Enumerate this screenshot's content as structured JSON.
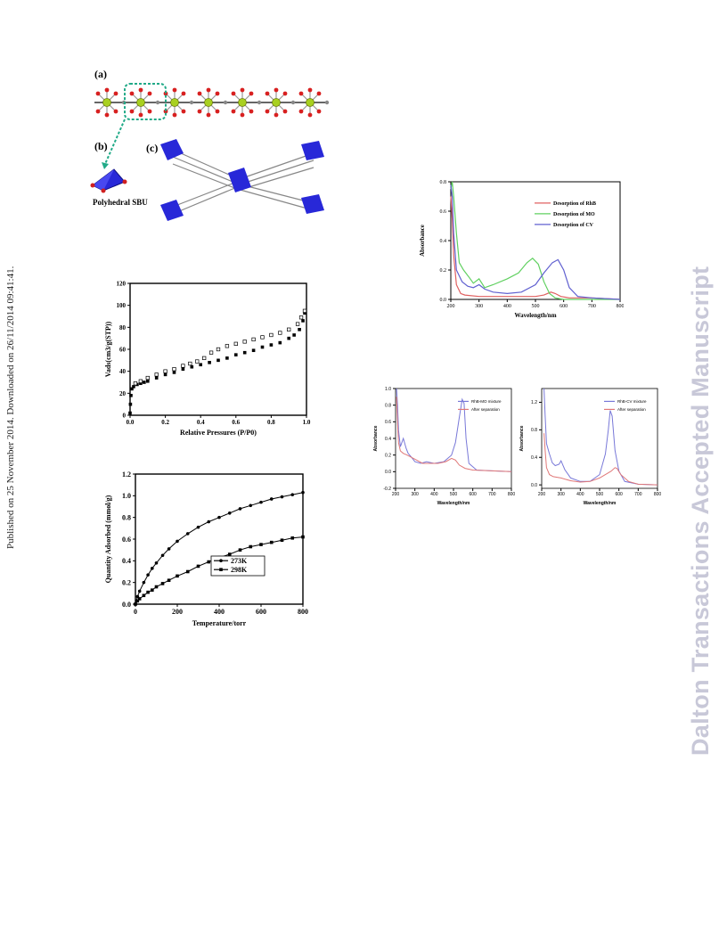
{
  "side_note": "Published on 25 November 2014. Downloaded on 26/11/2014 09:41:41.",
  "watermark": "Dalton Transactions Accepted Manuscript",
  "structure_figure": {
    "label_a": "(a)",
    "label_b": "(b)",
    "label_c": "(c)",
    "caption_b": "Polyhedral SBU"
  },
  "colors": {
    "rhb": "#e06060",
    "mo": "#60d060",
    "cv": "#6060d0",
    "mixture": "#7878d8",
    "after": "#e07878",
    "sbu": "#2828d8"
  },
  "chart_data": [
    {
      "id": "isotherm",
      "type": "scatter",
      "xlabel": "Relative Pressures (P/P0)",
      "ylabel": "Vads(cm3/g(STP))",
      "xlim": [
        0.0,
        1.0
      ],
      "ylim": [
        0,
        120
      ],
      "xticks": [
        "0.0",
        "0.2",
        "0.4",
        "0.6",
        "0.8",
        "1.0"
      ],
      "yticks": [
        "0",
        "20",
        "40",
        "60",
        "80",
        "100",
        "120"
      ],
      "series": [
        {
          "marker": "filled-square",
          "x": [
            0.0,
            0.002,
            0.005,
            0.01,
            0.02,
            0.04,
            0.06,
            0.08,
            0.1,
            0.15,
            0.2,
            0.25,
            0.3,
            0.35,
            0.4,
            0.45,
            0.5,
            0.55,
            0.6,
            0.65,
            0.7,
            0.75,
            0.8,
            0.85,
            0.9,
            0.93,
            0.96,
            0.98,
            0.99
          ],
          "y": [
            2,
            10,
            18,
            24,
            26,
            28,
            29,
            30,
            31,
            34,
            37,
            39,
            42,
            44,
            46,
            48,
            50,
            52,
            55,
            57,
            59,
            62,
            64,
            66,
            70,
            73,
            78,
            86,
            93
          ]
        },
        {
          "marker": "open-square",
          "x": [
            0.99,
            0.97,
            0.95,
            0.9,
            0.85,
            0.8,
            0.75,
            0.7,
            0.65,
            0.6,
            0.55,
            0.5,
            0.46,
            0.42,
            0.38,
            0.34,
            0.3,
            0.25,
            0.2,
            0.15,
            0.1,
            0.06,
            0.03
          ],
          "y": [
            95,
            89,
            83,
            78,
            75,
            73,
            71,
            69,
            67,
            65,
            63,
            60,
            57,
            52,
            49,
            47,
            45,
            42,
            40,
            37,
            34,
            31,
            29
          ]
        }
      ]
    },
    {
      "id": "co2",
      "type": "line",
      "xlabel": "Temperature/torr",
      "ylabel": "Quantity Adsorbed (mmol/g)",
      "xlim": [
        0,
        800
      ],
      "ylim": [
        0.0,
        1.2
      ],
      "xticks": [
        "0",
        "200",
        "400",
        "600",
        "800"
      ],
      "yticks": [
        "0.0",
        "0.2",
        "0.4",
        "0.6",
        "0.8",
        "1.0",
        "1.2"
      ],
      "legend_position": "center-right",
      "series": [
        {
          "name": "273K",
          "marker": "circle",
          "x": [
            0,
            10,
            20,
            40,
            60,
            80,
            100,
            130,
            160,
            200,
            250,
            300,
            350,
            400,
            450,
            500,
            550,
            600,
            650,
            700,
            750,
            800
          ],
          "y": [
            0.0,
            0.07,
            0.12,
            0.2,
            0.27,
            0.33,
            0.38,
            0.45,
            0.51,
            0.58,
            0.65,
            0.71,
            0.76,
            0.8,
            0.84,
            0.88,
            0.91,
            0.94,
            0.97,
            0.99,
            1.01,
            1.03
          ]
        },
        {
          "name": "298K",
          "marker": "square",
          "x": [
            0,
            10,
            20,
            40,
            60,
            80,
            100,
            130,
            160,
            200,
            250,
            300,
            350,
            400,
            450,
            500,
            550,
            600,
            650,
            700,
            750,
            800
          ],
          "y": [
            0.0,
            0.03,
            0.05,
            0.08,
            0.11,
            0.13,
            0.16,
            0.19,
            0.22,
            0.26,
            0.3,
            0.35,
            0.39,
            0.43,
            0.46,
            0.5,
            0.53,
            0.55,
            0.57,
            0.59,
            0.61,
            0.62
          ]
        }
      ]
    },
    {
      "id": "desorption",
      "type": "line",
      "xlabel": "Wavelength/nm",
      "ylabel": "Absorbance",
      "xlim": [
        200,
        800
      ],
      "ylim": [
        0.0,
        0.8
      ],
      "xticks": [
        "200",
        "300",
        "400",
        "500",
        "600",
        "700",
        "800"
      ],
      "yticks": [
        "0.0",
        "0.2",
        "0.4",
        "0.6",
        "0.8"
      ],
      "legend_position": "top-right",
      "series": [
        {
          "name": "Desorption of RhB",
          "x": [
            200,
            205,
            210,
            220,
            235,
            250,
            300,
            400,
            500,
            530,
            555,
            570,
            590,
            620,
            700,
            800
          ],
          "y": [
            0.7,
            0.55,
            0.3,
            0.1,
            0.04,
            0.03,
            0.02,
            0.02,
            0.02,
            0.03,
            0.05,
            0.04,
            0.02,
            0.01,
            0.01,
            0.0
          ]
        },
        {
          "name": "Desorption of MO",
          "x": [
            200,
            205,
            210,
            220,
            230,
            245,
            265,
            280,
            300,
            320,
            350,
            400,
            440,
            470,
            490,
            510,
            530,
            550,
            570,
            600,
            700,
            800
          ],
          "y": [
            0.75,
            0.8,
            0.7,
            0.45,
            0.25,
            0.2,
            0.15,
            0.11,
            0.14,
            0.08,
            0.1,
            0.14,
            0.18,
            0.25,
            0.28,
            0.24,
            0.12,
            0.04,
            0.01,
            0.0,
            0.0,
            0.0
          ]
        },
        {
          "name": "Desorption of CV",
          "x": [
            200,
            205,
            210,
            220,
            240,
            260,
            280,
            300,
            320,
            350,
            400,
            450,
            500,
            530,
            560,
            580,
            600,
            620,
            650,
            700,
            800
          ],
          "y": [
            0.78,
            0.7,
            0.45,
            0.2,
            0.12,
            0.09,
            0.08,
            0.1,
            0.07,
            0.05,
            0.04,
            0.05,
            0.1,
            0.18,
            0.25,
            0.27,
            0.2,
            0.08,
            0.02,
            0.01,
            0.0
          ]
        }
      ]
    },
    {
      "id": "rhb-mo",
      "type": "line",
      "xlabel": "Wavelength/nm",
      "ylabel": "Absorbance",
      "xlim": [
        200,
        800
      ],
      "ylim": [
        -0.2,
        1.0
      ],
      "xticks": [
        "200",
        "300",
        "400",
        "500",
        "600",
        "700",
        "800"
      ],
      "yticks": [
        "-0.2",
        "0.0",
        "0.2",
        "0.4",
        "0.6",
        "0.8",
        "1.0"
      ],
      "legend_position": "top-right",
      "series": [
        {
          "name": "RhB-MO mixture",
          "x": [
            205,
            210,
            215,
            225,
            240,
            255,
            265,
            280,
            300,
            330,
            360,
            400,
            450,
            490,
            510,
            530,
            545,
            555,
            565,
            580,
            620,
            700,
            800
          ],
          "y": [
            1.0,
            0.8,
            0.5,
            0.3,
            0.4,
            0.28,
            0.22,
            0.18,
            0.12,
            0.1,
            0.12,
            0.1,
            0.12,
            0.2,
            0.35,
            0.65,
            0.87,
            0.82,
            0.4,
            0.1,
            0.02,
            0.01,
            0.0
          ]
        },
        {
          "name": "After separation",
          "x": [
            205,
            210,
            215,
            225,
            240,
            260,
            300,
            340,
            380,
            420,
            460,
            490,
            510,
            530,
            560,
            600,
            700,
            800
          ],
          "y": [
            0.9,
            0.6,
            0.35,
            0.25,
            0.22,
            0.2,
            0.15,
            0.1,
            0.1,
            0.1,
            0.12,
            0.16,
            0.14,
            0.08,
            0.04,
            0.02,
            0.01,
            0.0
          ]
        }
      ]
    },
    {
      "id": "rhb-cv",
      "type": "line",
      "xlabel": "Wavelength/nm",
      "ylabel": "Absorbance",
      "xlim": [
        200,
        800
      ],
      "ylim": [
        -0.05,
        1.4
      ],
      "xticks": [
        "200",
        "300",
        "400",
        "500",
        "600",
        "700",
        "800"
      ],
      "yticks": [
        "0.0",
        "0.4",
        "0.8",
        "1.2"
      ],
      "legend_position": "top-right",
      "series": [
        {
          "name": "RhB-CV mixture",
          "x": [
            212,
            218,
            225,
            240,
            255,
            270,
            290,
            300,
            320,
            350,
            400,
            450,
            500,
            530,
            545,
            555,
            565,
            580,
            600,
            630,
            700,
            800
          ],
          "y": [
            1.4,
            1.0,
            0.6,
            0.45,
            0.32,
            0.28,
            0.3,
            0.35,
            0.22,
            0.1,
            0.05,
            0.05,
            0.15,
            0.45,
            0.8,
            1.08,
            1.0,
            0.5,
            0.2,
            0.05,
            0.01,
            0.0
          ]
        },
        {
          "name": "After separation",
          "x": [
            212,
            218,
            225,
            240,
            260,
            300,
            350,
            400,
            450,
            500,
            530,
            560,
            580,
            590,
            610,
            650,
            700,
            800
          ],
          "y": [
            0.75,
            0.5,
            0.25,
            0.15,
            0.12,
            0.1,
            0.06,
            0.04,
            0.05,
            0.1,
            0.15,
            0.2,
            0.25,
            0.24,
            0.15,
            0.05,
            0.01,
            0.0
          ]
        }
      ]
    }
  ]
}
